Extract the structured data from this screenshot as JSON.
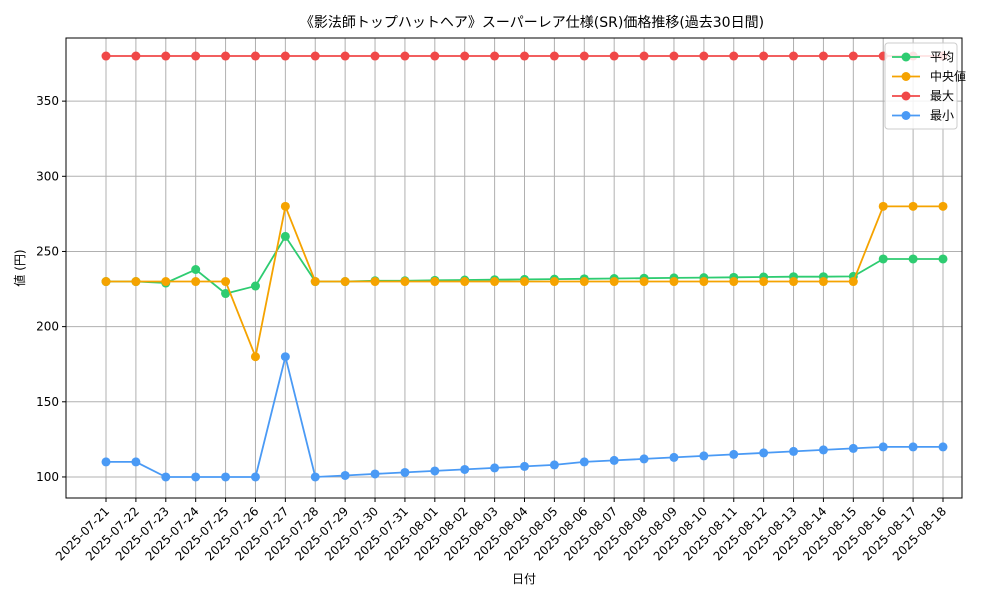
{
  "chart_data": {
    "type": "line",
    "title": "《影法師トップハットヘア》スーパーレア仕様(SR)価格推移(過去30日間)",
    "xlabel": "日付",
    "ylabel": "値 (円)",
    "ylim": [
      86,
      392
    ],
    "yticks": [
      100,
      150,
      200,
      250,
      300,
      350
    ],
    "grid": true,
    "legend_position": "top-right",
    "x": [
      "2025-07-21",
      "2025-07-22",
      "2025-07-23",
      "2025-07-24",
      "2025-07-25",
      "2025-07-26",
      "2025-07-27",
      "2025-07-28",
      "2025-07-29",
      "2025-07-30",
      "2025-07-31",
      "2025-08-01",
      "2025-08-02",
      "2025-08-03",
      "2025-08-04",
      "2025-08-05",
      "2025-08-06",
      "2025-08-07",
      "2025-08-08",
      "2025-08-09",
      "2025-08-10",
      "2025-08-11",
      "2025-08-12",
      "2025-08-13",
      "2025-08-14",
      "2025-08-15",
      "2025-08-16",
      "2025-08-17",
      "2025-08-18"
    ],
    "series": [
      {
        "name": "平均",
        "color": "#2ecc71",
        "values": [
          230,
          230,
          229,
          238,
          222,
          227,
          260,
          230,
          230,
          230.5,
          230.5,
          230.8,
          231,
          231.2,
          231.4,
          231.6,
          231.8,
          232,
          232.2,
          232.4,
          232.6,
          232.8,
          233,
          233.2,
          233.2,
          233.4,
          245,
          245,
          245
        ]
      },
      {
        "name": "中央値",
        "color": "#f5a300",
        "values": [
          230,
          230,
          230,
          230,
          230,
          180,
          280,
          230,
          230,
          230,
          230,
          230,
          230,
          230,
          230,
          230,
          230,
          230,
          230,
          230,
          230,
          230,
          230,
          230,
          230,
          230,
          280,
          280,
          280
        ]
      },
      {
        "name": "最大",
        "color": "#f04848",
        "values": [
          380,
          380,
          380,
          380,
          380,
          380,
          380,
          380,
          380,
          380,
          380,
          380,
          380,
          380,
          380,
          380,
          380,
          380,
          380,
          380,
          380,
          380,
          380,
          380,
          380,
          380,
          380,
          380,
          380
        ]
      },
      {
        "name": "最小",
        "color": "#4a9af5",
        "values": [
          110,
          110,
          100,
          100,
          100,
          100,
          180,
          100,
          101,
          102,
          103,
          104,
          105,
          106,
          107,
          108,
          110,
          111,
          112,
          113,
          114,
          115,
          116,
          117,
          118,
          119,
          120,
          120,
          120
        ]
      }
    ]
  }
}
